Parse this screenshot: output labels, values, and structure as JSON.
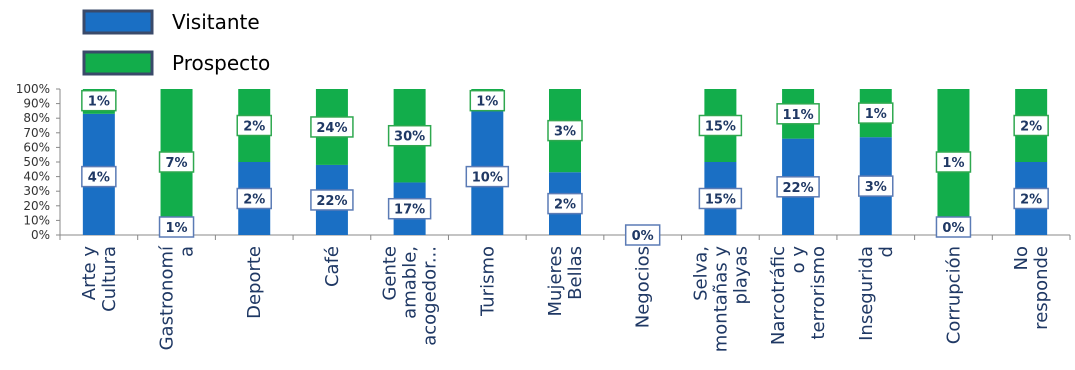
{
  "colors": {
    "visitante": "#1a6fc4",
    "prospecto": "#12ad4b"
  },
  "chart_data": {
    "type": "bar",
    "stacked": true,
    "normalized": true,
    "ylim": [
      0,
      100
    ],
    "yticks": [
      "0%",
      "10%",
      "20%",
      "30%",
      "40%",
      "50%",
      "60%",
      "70%",
      "80%",
      "90%",
      "100%"
    ],
    "legend": {
      "placement": "top-left"
    },
    "categories": [
      [
        "Arte y",
        "Cultura"
      ],
      [
        "Gastronomí",
        "a"
      ],
      [
        "Deporte"
      ],
      [
        "Café"
      ],
      [
        "Gente",
        "amable,",
        "acogedor..."
      ],
      [
        "Turismo"
      ],
      [
        "Mujeres",
        "Bellas"
      ],
      [
        "Negocios"
      ],
      [
        "Selva,",
        "montañas y",
        "playas"
      ],
      [
        "Narcotráfic",
        "o y",
        "terrorismo"
      ],
      [
        "Insegurida",
        "d"
      ],
      [
        "Corrupción"
      ],
      [
        "No",
        "responde"
      ]
    ],
    "series": [
      {
        "name": "Visitante",
        "share": [
          83,
          0,
          50,
          48,
          36,
          86,
          43,
          0,
          50,
          66,
          67,
          0,
          50
        ],
        "labels": [
          "4%",
          "1%",
          "2%",
          "22%",
          "17%",
          "10%",
          "2%",
          "0%",
          "15%",
          "22%",
          "3%",
          "0%",
          "2%"
        ]
      },
      {
        "name": "Prospecto",
        "share": [
          17,
          100,
          50,
          52,
          64,
          14,
          57,
          0,
          50,
          34,
          33,
          100,
          50
        ],
        "labels": [
          "1%",
          "7%",
          "2%",
          "24%",
          "30%",
          "1%",
          "3%",
          "",
          "15%",
          "11%",
          "1%",
          "1%",
          "2%"
        ]
      }
    ]
  }
}
